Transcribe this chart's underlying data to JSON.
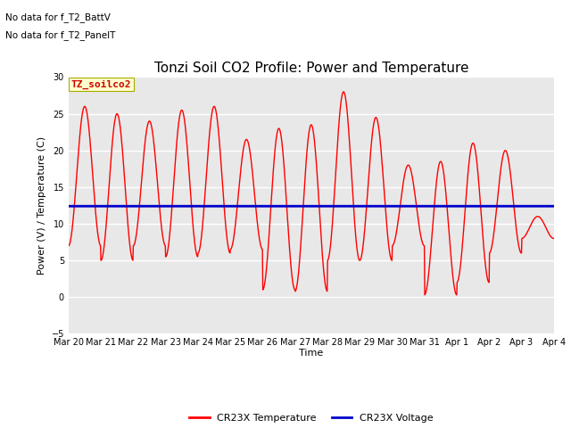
{
  "title": "Tonzi Soil CO2 Profile: Power and Temperature",
  "ylabel": "Power (V) / Temperature (C)",
  "xlabel": "Time",
  "ylim": [
    -5,
    30
  ],
  "yticks": [
    -5,
    0,
    5,
    10,
    15,
    20,
    25,
    30
  ],
  "annotation_lines": [
    "No data for f_T2_BattV",
    "No data for f_T2_PanelT"
  ],
  "legend_box_label": "TZ_soilco2",
  "legend_items": [
    "CR23X Temperature",
    "CR23X Voltage"
  ],
  "legend_colors": [
    "#ff0000",
    "#0000cc"
  ],
  "temp_color": "#ff0000",
  "voltage_color": "#0000cc",
  "voltage_value": 12.4,
  "plot_bg_color": "#e8e8e8",
  "fig_bg_color": "#ffffff",
  "grid_color": "#ffffff",
  "x_tick_labels": [
    "Mar 20",
    "Mar 21",
    "Mar 22",
    "Mar 23",
    "Mar 24",
    "Mar 25",
    "Mar 26",
    "Mar 27",
    "Mar 28",
    "Mar 29",
    "Mar 30",
    "Mar 31",
    "Apr 1",
    "Apr 2",
    "Apr 3",
    "Apr 4"
  ],
  "day_peaks": [
    26.0,
    25.0,
    24.0,
    25.5,
    26.0,
    21.5,
    23.0,
    23.5,
    28.0,
    24.5,
    18.0,
    18.5,
    21.0,
    20.0,
    11.0
  ],
  "day_troughs": [
    7.0,
    5.0,
    7.0,
    5.5,
    6.0,
    6.5,
    1.0,
    0.8,
    5.0,
    5.0,
    7.0,
    0.3,
    2.0,
    6.0,
    8.0
  ],
  "title_fontsize": 11,
  "axis_label_fontsize": 8,
  "tick_fontsize": 7,
  "annotation_fontsize": 7.5,
  "legend_fontsize": 8
}
